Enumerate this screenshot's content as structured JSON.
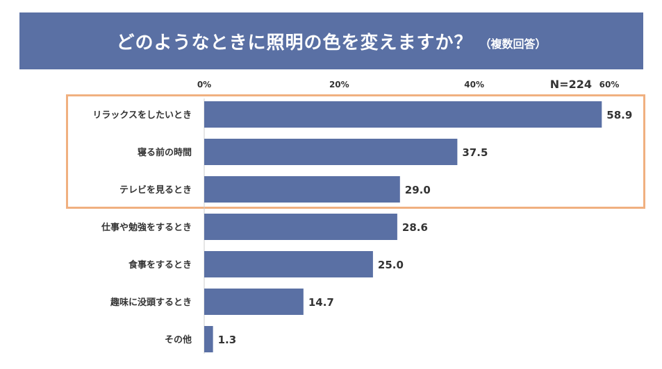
{
  "title": "どのようなときに照明の色を変えますか？",
  "subtitle": "（複数回答）",
  "sample_size": "N=224",
  "colors": {
    "banner": "#5a70a4",
    "bar": "#5a70a4",
    "highlight": "#f0b080",
    "text": "#333333"
  },
  "chart_data": {
    "type": "bar",
    "orientation": "horizontal",
    "title": "どのようなときに照明の色を変えますか？（複数回答）",
    "categories": [
      "リラックスをしたいとき",
      "寝る前の時間",
      "テレビを見るとき",
      "仕事や勉強をするとき",
      "食事をするとき",
      "趣味に没頭するとき",
      "その他"
    ],
    "values": [
      58.9,
      37.5,
      29.0,
      28.6,
      25.0,
      14.7,
      1.3
    ],
    "value_labels": [
      "58.9",
      "37.5",
      "29.0",
      "28.6",
      "25.0",
      "14.7",
      "1.3"
    ],
    "xlim": [
      0,
      60
    ],
    "ticks": [
      0,
      20,
      40,
      60
    ],
    "tick_labels": [
      "0%",
      "20%",
      "40%",
      "60%"
    ],
    "highlighted_categories": [
      "リラックスをしたいとき",
      "寝る前の時間",
      "テレビを見るとき"
    ]
  }
}
